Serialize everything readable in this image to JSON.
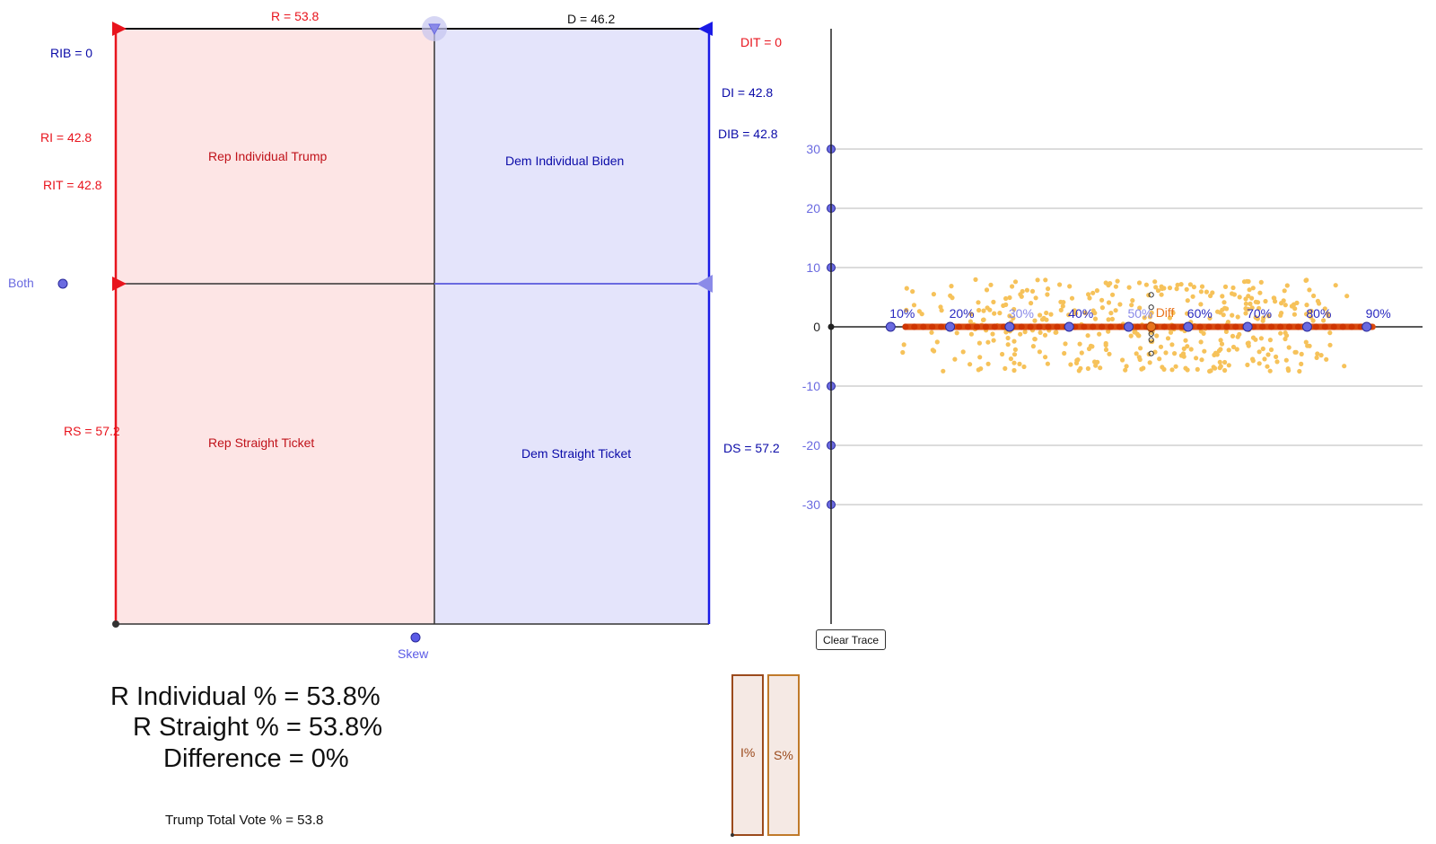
{
  "top_labels": {
    "r": "R = 53.8",
    "d": "D = 46.2"
  },
  "left_labels": {
    "rib": "RIB = 0",
    "ri": "RI = 42.8",
    "rit": "RIT = 42.8",
    "both": "Both",
    "rs": "RS = 57.2"
  },
  "right_labels": {
    "dit": "DIT = 0",
    "di": "DI = 42.8",
    "dib": "DIB = 42.8",
    "ds": "DS = 57.2"
  },
  "quadrants": {
    "rep_individual": "Rep Individual Trump",
    "dem_individual": "Dem Individual Biden",
    "rep_straight": "Rep Straight Ticket",
    "dem_straight": "Dem Straight Ticket"
  },
  "skew_label": "Skew",
  "stats": {
    "r_individual": "R Individual % = 53.8%",
    "r_straight": "R Straight % = 53.8%",
    "difference": "Difference = 0%",
    "trump_total": "Trump Total Vote % = 53.8"
  },
  "bars": {
    "i_label": "I%",
    "s_label": "S%"
  },
  "clear_trace": "Clear Trace",
  "colors": {
    "rep": "#e8141d",
    "rep_fill": "#fde5e5",
    "dem": "#1a1ae6",
    "dem_fill": "#e4e4fb",
    "dem_label": "#0b0ba8",
    "axis_blue": "#6a6ae0",
    "trace_orange": "#cc3300",
    "scatter": "#f6c25a",
    "bar_border": "#9b4a1c",
    "bar_fill": "#f5e9e4"
  },
  "chart_data": {
    "type": "scatter",
    "title": "",
    "xlabel": "",
    "ylabel": "",
    "y_ticks": [
      30,
      20,
      10,
      0,
      -10,
      -20,
      -30
    ],
    "x_markers": [
      "10%",
      "20%",
      "30%",
      "40%",
      "50%",
      "60%",
      "70%",
      "80%",
      "90%"
    ],
    "x_marker_values": [
      10,
      20,
      30,
      40,
      50,
      60,
      70,
      80,
      90
    ],
    "diff_label": "Diff",
    "diff_x": 53.8,
    "diff_y": 0,
    "xlim": [
      0,
      100
    ],
    "ylim": [
      -50,
      50
    ],
    "trace_range": [
      12.5,
      91
    ],
    "scatter_count": 420,
    "scatter_x_range": [
      11,
      91
    ],
    "scatter_y_range": [
      -7.5,
      8
    ],
    "grid": true
  }
}
